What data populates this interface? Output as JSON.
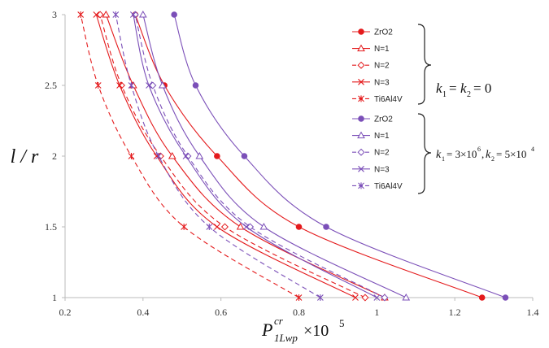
{
  "chart_data": {
    "type": "line",
    "xlabel": {
      "base": "P",
      "sub": "1Lwp",
      "sup": "cr",
      "times": "×10",
      "exp": "5"
    },
    "ylabel": "l / r",
    "xlim": [
      0.2,
      1.4
    ],
    "ylim": [
      1,
      3
    ],
    "x_ticks": [
      "0.2",
      "0.4",
      "0.6",
      "0.8",
      "1",
      "1.2",
      "1.4"
    ],
    "y_ticks": [
      "1",
      "1.5",
      "2",
      "2.5",
      "3"
    ],
    "grid": false,
    "legend_position": "right",
    "y": [
      1,
      1.5,
      2,
      2.5,
      3
    ],
    "groups": [
      {
        "annotation": "k₁ = k₂ = 0",
        "color": "#e41a1c",
        "series": [
          {
            "name": "ZrO2",
            "marker": "filled-circle",
            "dash": "solid",
            "x": [
              1.27,
              0.8,
              0.59,
              0.455,
              0.38
            ]
          },
          {
            "name": "N=1",
            "marker": "triangle",
            "dash": "solid",
            "x": [
              1.02,
              0.65,
              0.475,
              0.375,
              0.305
            ]
          },
          {
            "name": "N=2",
            "marker": "diamond",
            "dash": "dashed",
            "x": [
              0.97,
              0.61,
              0.445,
              0.345,
              0.29
            ]
          },
          {
            "name": "N=3",
            "marker": "x",
            "dash": "solid",
            "x": [
              0.945,
              0.59,
              0.435,
              0.34,
              0.28
            ]
          },
          {
            "name": "Ti6Al4V",
            "marker": "star",
            "dash": "dashed",
            "x": [
              0.8,
              0.505,
              0.37,
              0.285,
              0.24
            ]
          }
        ]
      },
      {
        "annotation": "k₁ = 3×10⁶, k₂ = 5×10⁴",
        "color": "#7b4fb8",
        "series": [
          {
            "name": "ZrO2",
            "marker": "filled-circle",
            "dash": "solid",
            "x": [
              1.33,
              0.87,
              0.66,
              0.535,
              0.48
            ]
          },
          {
            "name": "N=1",
            "marker": "triangle",
            "dash": "solid",
            "x": [
              1.075,
              0.71,
              0.545,
              0.45,
              0.4
            ]
          },
          {
            "name": "N=2",
            "marker": "diamond",
            "dash": "dashed",
            "x": [
              1.02,
              0.675,
              0.515,
              0.425,
              0.38
            ]
          },
          {
            "name": "N=3",
            "marker": "x",
            "dash": "solid",
            "x": [
              1.0,
              0.665,
              0.51,
              0.415,
              0.375
            ]
          },
          {
            "name": "Ti6Al4V",
            "marker": "star",
            "dash": "dashed",
            "x": [
              0.855,
              0.57,
              0.44,
              0.37,
              0.33
            ]
          }
        ]
      }
    ]
  },
  "annotations": {
    "group1": {
      "k1": "k",
      "k1sub": "1",
      "eq1": "=",
      "k2": "k",
      "k2sub": "2",
      "eq2": "= 0"
    },
    "group2": {
      "k1": "k",
      "k1sub": "1",
      "eq1": "= 3×10",
      "exp1": "6",
      "comma": ",",
      "k2": "k",
      "k2sub": "2",
      "eq2": "= 5×10",
      "exp2": "4"
    }
  }
}
